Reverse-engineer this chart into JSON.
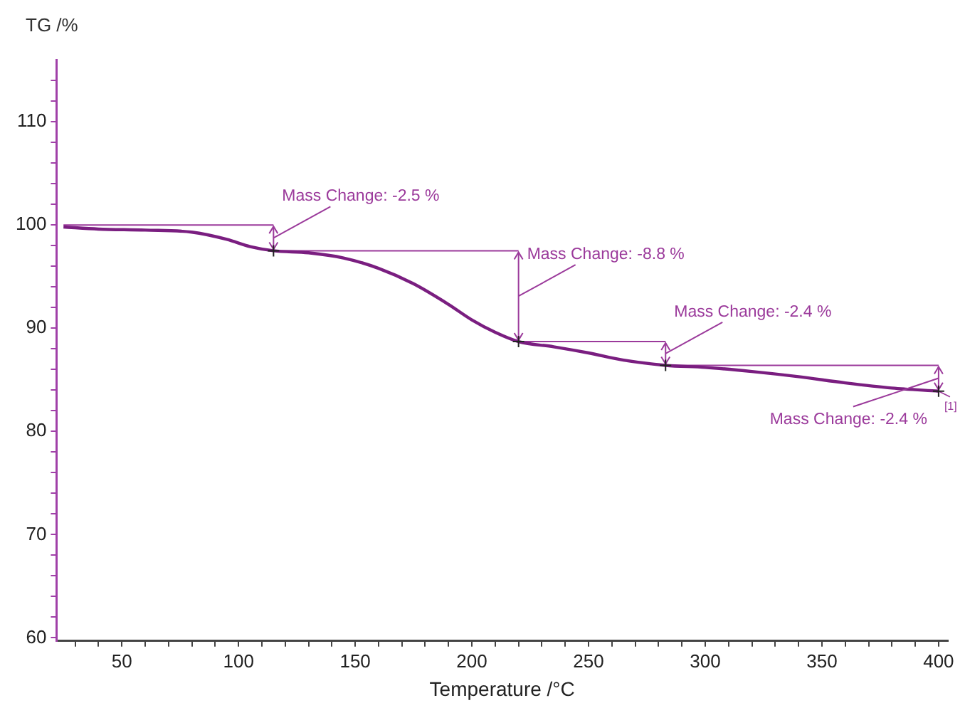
{
  "chart_data": {
    "type": "line",
    "xlabel": "Temperature /°C",
    "ylabel": "TG /%",
    "x": [
      25,
      40,
      60,
      80,
      95,
      105,
      115,
      130,
      145,
      160,
      175,
      190,
      200,
      210,
      220,
      235,
      250,
      265,
      283,
      300,
      320,
      340,
      360,
      380,
      400
    ],
    "series": [
      {
        "name": "[1]",
        "color": "#7a1e80",
        "values": [
          99.8,
          99.6,
          99.5,
          99.3,
          98.6,
          97.9,
          97.5,
          97.3,
          96.8,
          95.8,
          94.3,
          92.3,
          90.8,
          89.6,
          88.7,
          88.2,
          87.6,
          86.9,
          86.4,
          86.2,
          85.8,
          85.3,
          84.7,
          84.2,
          83.9
        ]
      },
      {
        "type": "line",
        "color": "#9b3a9b",
        "x": [
          25,
          115
        ],
        "values": [
          100,
          100
        ]
      },
      {
        "type": "line",
        "color": "#9b3a9b",
        "x": [
          115,
          220
        ],
        "values": [
          97.5,
          97.5
        ]
      },
      {
        "type": "line",
        "color": "#9b3a9b",
        "x": [
          220,
          283
        ],
        "values": [
          88.7,
          88.7
        ]
      },
      {
        "type": "line",
        "color": "#9b3a9b",
        "x": [
          283,
          400
        ],
        "values": [
          86.4,
          86.4
        ]
      }
    ],
    "xlim": [
      22,
      404
    ],
    "ylim": [
      59.7,
      116
    ],
    "xticks": [
      {
        "value": 30,
        "label": null
      },
      {
        "value": 40,
        "label": null
      },
      50,
      {
        "value": 60,
        "label": null
      },
      {
        "value": 70,
        "label": null
      },
      {
        "value": 80,
        "label": null
      },
      {
        "value": 90,
        "label": null
      },
      100,
      {
        "value": 110,
        "label": null
      },
      {
        "value": 120,
        "label": null
      },
      {
        "value": 130,
        "label": null
      },
      {
        "value": 140,
        "label": null
      },
      150,
      {
        "value": 160,
        "label": null
      },
      {
        "value": 170,
        "label": null
      },
      {
        "value": 180,
        "label": null
      },
      {
        "value": 190,
        "label": null
      },
      200,
      {
        "value": 210,
        "label": null
      },
      {
        "value": 220,
        "label": null
      },
      {
        "value": 230,
        "label": null
      },
      {
        "value": 240,
        "label": null
      },
      250,
      {
        "value": 260,
        "label": null
      },
      {
        "value": 270,
        "label": null
      },
      {
        "value": 280,
        "label": null
      },
      {
        "value": 290,
        "label": null
      },
      300,
      {
        "value": 310,
        "label": null
      },
      {
        "value": 320,
        "label": null
      },
      {
        "value": 330,
        "label": null
      },
      {
        "value": 340,
        "label": null
      },
      350,
      {
        "value": 360,
        "label": null
      },
      {
        "value": 370,
        "label": null
      },
      {
        "value": 380,
        "label": null
      },
      {
        "value": 390,
        "label": null
      },
      400
    ],
    "yticks": [
      60,
      {
        "value": 62,
        "label": null
      },
      {
        "value": 64,
        "label": null
      },
      {
        "value": 66,
        "label": null
      },
      {
        "value": 68,
        "label": null
      },
      70,
      {
        "value": 72,
        "label": null
      },
      {
        "value": 74,
        "label": null
      },
      {
        "value": 76,
        "label": null
      },
      {
        "value": 78,
        "label": null
      },
      80,
      {
        "value": 82,
        "label": null
      },
      {
        "value": 84,
        "label": null
      },
      {
        "value": 86,
        "label": null
      },
      {
        "value": 88,
        "label": null
      },
      90,
      {
        "value": 92,
        "label": null
      },
      {
        "value": 94,
        "label": null
      },
      {
        "value": 96,
        "label": null
      },
      {
        "value": 98,
        "label": null
      },
      100,
      {
        "value": 102,
        "label": null
      },
      {
        "value": 104,
        "label": null
      },
      {
        "value": 106,
        "label": null
      },
      {
        "value": 108,
        "label": null
      },
      110,
      {
        "value": 112,
        "label": null
      },
      {
        "value": 114,
        "label": null
      }
    ],
    "annotations": [
      {
        "text": "Mass Change: -2.5 %",
        "x": 115,
        "y": 97.5
      },
      {
        "text": "Mass Change: -8.8 %",
        "x": 220,
        "y": 88.7
      },
      {
        "text": "Mass Change: -2.4 %",
        "x": 283,
        "y": 86.4
      },
      {
        "text": "Mass Change: -2.4 %",
        "x": 400,
        "y": 83.9
      }
    ],
    "grid": false,
    "legend": false,
    "marker": "none",
    "line_style": "solid"
  }
}
